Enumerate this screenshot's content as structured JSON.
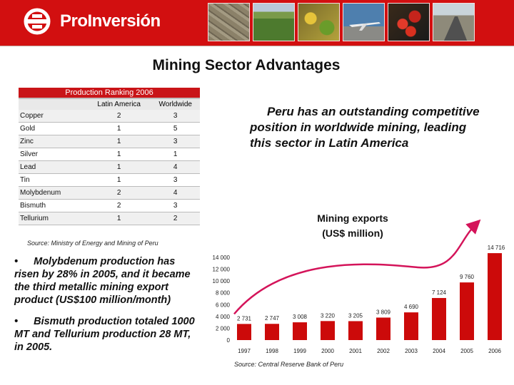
{
  "header": {
    "brand": "ProInversión",
    "colors": {
      "header_bg": "#d20f10",
      "accent": "#c91418"
    },
    "photos": [
      "stone-wall-photo",
      "crop-field-photo",
      "produce-photo",
      "airplane-photo",
      "seeds-photo",
      "highway-photo"
    ]
  },
  "slide_title": "Mining Sector Advantages",
  "ranking_table": {
    "title": "Production Ranking 2006",
    "columns": [
      "Latin America",
      "Worldwide"
    ],
    "rows": [
      {
        "metal": "Copper",
        "latin_america": "2",
        "worldwide": "3"
      },
      {
        "metal": "Gold",
        "latin_america": "1",
        "worldwide": "5"
      },
      {
        "metal": "Zinc",
        "latin_america": "1",
        "worldwide": "3"
      },
      {
        "metal": "Silver",
        "latin_america": "1",
        "worldwide": "1"
      },
      {
        "metal": "Lead",
        "latin_america": "1",
        "worldwide": "4"
      },
      {
        "metal": "Tin",
        "latin_america": "1",
        "worldwide": "3"
      },
      {
        "metal": "Molybdenum",
        "latin_america": "2",
        "worldwide": "4"
      },
      {
        "metal": "Bismuth",
        "latin_america": "2",
        "worldwide": "3"
      },
      {
        "metal": "Tellurium",
        "latin_america": "1",
        "worldwide": "2"
      }
    ],
    "source": "Source: Ministry of Energy and Mining of Peru"
  },
  "bullets": [
    "Molybdenum production has risen by 28% in 2005, and it became the third metallic mining export product (US$100 million/month)",
    "Bismuth production totaled 1000 MT and Tellurium production 28 MT, in 2005."
  ],
  "statement": "Peru has an outstanding competitive position in worldwide mining, leading this sector in Latin America",
  "chart_title": [
    "Mining exports",
    "(US$ million)"
  ],
  "chart_source": "Source: Central Reserve Bank of Peru",
  "chart_data": {
    "type": "bar",
    "title": "Mining exports (US$ million)",
    "categories": [
      "1997",
      "1998",
      "1999",
      "2000",
      "2001",
      "2002",
      "2003",
      "2004",
      "2005",
      "2006"
    ],
    "values": [
      2731,
      2747,
      3008,
      3220,
      3205,
      3809,
      4690,
      7124,
      9760,
      14716
    ],
    "value_labels": [
      "2 731",
      "2 747",
      "3 008",
      "3 220",
      "3 205",
      "3 809",
      "4 690",
      "7 124",
      "9 760",
      "14 716"
    ],
    "y_ticks": [
      "0",
      "2 000",
      "4 000",
      "6 000",
      "8 000",
      "10 000",
      "12 000",
      "14 000"
    ],
    "ylim": [
      0,
      14000
    ],
    "bar_color": "#cc0a0a",
    "trend_color": "#d4145a",
    "grid": false
  }
}
